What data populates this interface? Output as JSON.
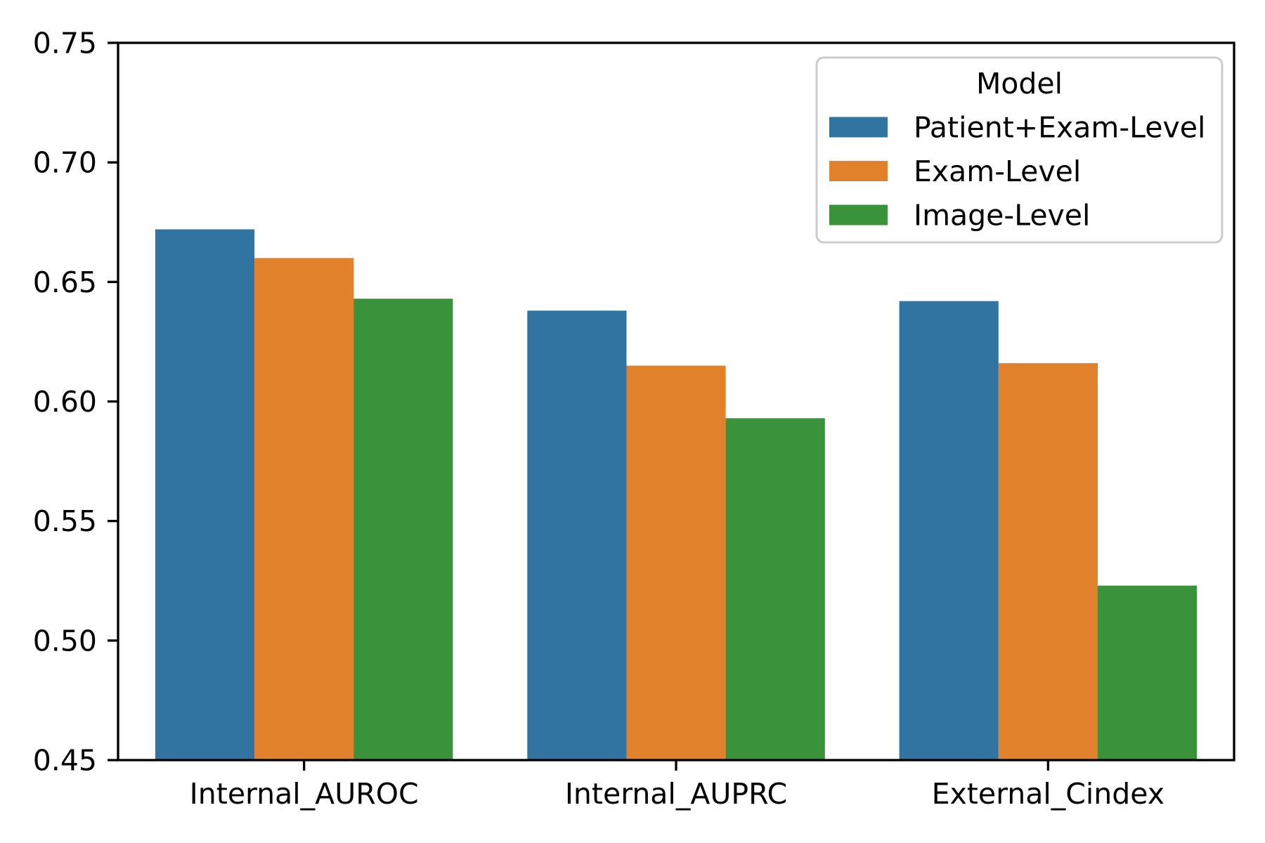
{
  "chart_data": {
    "type": "bar",
    "title": "",
    "xlabel": "",
    "ylabel": "",
    "legend_title": "Model",
    "legend_position": "upper right",
    "grid": false,
    "categories": [
      "Internal_AUROC",
      "Internal_AUPRC",
      "External_Cindex"
    ],
    "series": [
      {
        "name": "Patient+Exam-Level",
        "color": "#3274A1",
        "values": [
          0.672,
          0.638,
          0.642
        ]
      },
      {
        "name": "Exam-Level",
        "color": "#E1812C",
        "values": [
          0.66,
          0.615,
          0.616
        ]
      },
      {
        "name": "Image-Level",
        "color": "#3A923A",
        "values": [
          0.643,
          0.593,
          0.523
        ]
      }
    ],
    "ylim": [
      0.45,
      0.75
    ],
    "yticks": [
      0.45,
      0.5,
      0.55,
      0.6,
      0.65,
      0.7,
      0.75
    ],
    "ytick_labels": [
      "0.45",
      "0.50",
      "0.55",
      "0.60",
      "0.65",
      "0.70",
      "0.75"
    ],
    "bar_width_fraction": 0.8,
    "axis_color": "#000000",
    "text_color": "#000000",
    "legend_border_color": "#CCCCCC",
    "legend_face_color": "#FFFFFF",
    "background": "#FFFFFF"
  }
}
